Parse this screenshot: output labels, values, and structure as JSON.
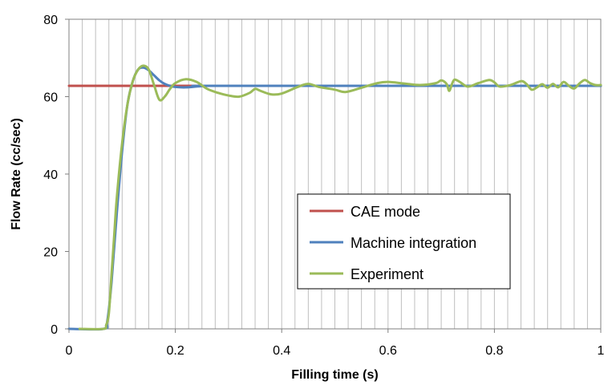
{
  "chart_data": {
    "type": "line",
    "title": "",
    "xlabel": "Filling time (s)",
    "ylabel": "Flow Rate (cc/sec)",
    "xlim": [
      0,
      1
    ],
    "ylim": [
      0,
      80
    ],
    "x_ticks": [
      0,
      0.2,
      0.4,
      0.6,
      0.8,
      1
    ],
    "x_tick_labels": [
      "0",
      "0.2",
      "0.4",
      "0.6",
      "0.8",
      "1"
    ],
    "y_ticks": [
      0,
      20,
      40,
      60,
      80
    ],
    "y_tick_labels": [
      "0",
      "20",
      "40",
      "60",
      "80"
    ],
    "x_grid_step": 0.025,
    "grid": "vertical",
    "legend_position": "center-right",
    "series": [
      {
        "name": "CAE mode",
        "color": "#c0504d",
        "points": [
          [
            0.0,
            62.8
          ],
          [
            1.0,
            62.8
          ]
        ]
      },
      {
        "name": "Machine integration",
        "color": "#4f81bd",
        "points": [
          [
            0.0,
            0
          ],
          [
            0.065,
            0
          ],
          [
            0.072,
            2
          ],
          [
            0.08,
            12
          ],
          [
            0.09,
            30
          ],
          [
            0.1,
            46
          ],
          [
            0.11,
            58
          ],
          [
            0.12,
            64
          ],
          [
            0.13,
            67
          ],
          [
            0.14,
            67.5
          ],
          [
            0.15,
            66.8
          ],
          [
            0.16,
            65.5
          ],
          [
            0.17,
            64.2
          ],
          [
            0.18,
            63.3
          ],
          [
            0.19,
            62.8
          ],
          [
            0.2,
            62.5
          ],
          [
            0.22,
            62.4
          ],
          [
            0.25,
            62.7
          ],
          [
            0.3,
            62.8
          ],
          [
            1.0,
            62.8
          ]
        ]
      },
      {
        "name": "Experiment",
        "color": "#9bbb59",
        "points": [
          [
            0.02,
            0
          ],
          [
            0.065,
            0
          ],
          [
            0.07,
            1
          ],
          [
            0.075,
            4
          ],
          [
            0.08,
            14
          ],
          [
            0.085,
            24
          ],
          [
            0.09,
            34
          ],
          [
            0.1,
            48
          ],
          [
            0.11,
            58
          ],
          [
            0.12,
            64
          ],
          [
            0.13,
            67
          ],
          [
            0.14,
            68
          ],
          [
            0.15,
            67
          ],
          [
            0.16,
            63
          ],
          [
            0.17,
            59.2
          ],
          [
            0.18,
            60
          ],
          [
            0.19,
            62
          ],
          [
            0.2,
            63.5
          ],
          [
            0.22,
            64.5
          ],
          [
            0.24,
            63.8
          ],
          [
            0.26,
            62
          ],
          [
            0.28,
            61
          ],
          [
            0.3,
            60.3
          ],
          [
            0.32,
            60
          ],
          [
            0.34,
            61
          ],
          [
            0.35,
            62
          ],
          [
            0.36,
            61.5
          ],
          [
            0.38,
            60.6
          ],
          [
            0.4,
            60.8
          ],
          [
            0.43,
            62.5
          ],
          [
            0.45,
            63.3
          ],
          [
            0.47,
            62.5
          ],
          [
            0.5,
            61.8
          ],
          [
            0.52,
            61.2
          ],
          [
            0.55,
            62.3
          ],
          [
            0.58,
            63.5
          ],
          [
            0.6,
            63.8
          ],
          [
            0.63,
            63.4
          ],
          [
            0.66,
            63
          ],
          [
            0.69,
            63.5
          ],
          [
            0.7,
            64.2
          ],
          [
            0.71,
            63.3
          ],
          [
            0.715,
            61.5
          ],
          [
            0.72,
            63.2
          ],
          [
            0.725,
            64.4
          ],
          [
            0.735,
            63.8
          ],
          [
            0.75,
            62.6
          ],
          [
            0.77,
            63.5
          ],
          [
            0.79,
            64.3
          ],
          [
            0.8,
            63.7
          ],
          [
            0.81,
            62.6
          ],
          [
            0.83,
            63
          ],
          [
            0.85,
            64
          ],
          [
            0.86,
            63.3
          ],
          [
            0.87,
            61.8
          ],
          [
            0.88,
            62.4
          ],
          [
            0.89,
            63.2
          ],
          [
            0.9,
            62.3
          ],
          [
            0.91,
            63.3
          ],
          [
            0.92,
            62.4
          ],
          [
            0.93,
            63.8
          ],
          [
            0.94,
            62.8
          ],
          [
            0.95,
            62.1
          ],
          [
            0.96,
            63.4
          ],
          [
            0.97,
            64.3
          ],
          [
            0.98,
            63.5
          ],
          [
            0.99,
            63
          ],
          [
            1.0,
            63
          ]
        ]
      }
    ]
  }
}
